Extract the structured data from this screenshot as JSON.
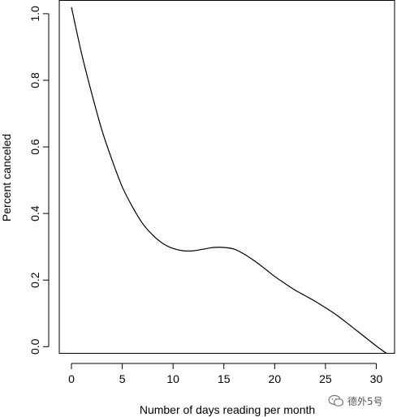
{
  "chart_data": {
    "type": "line",
    "title": "",
    "xlabel": "Number of days reading per month",
    "ylabel": "Percent canceled",
    "xlim": [
      -1.2,
      31.8
    ],
    "ylim": [
      -0.02,
      1.04
    ],
    "x_ticks": [
      0,
      5,
      10,
      15,
      20,
      25,
      30
    ],
    "x_tick_labels": [
      "0",
      "5",
      "10",
      "15",
      "20",
      "25",
      "30"
    ],
    "y_ticks": [
      0.0,
      0.2,
      0.4,
      0.6,
      0.8,
      1.0
    ],
    "y_tick_labels": [
      "0.0",
      "0.2",
      "0.4",
      "0.6",
      "0.8",
      "1.0"
    ],
    "series": [
      {
        "color": "#000000",
        "x": [
          0,
          1,
          2,
          3,
          4,
          5,
          6,
          7,
          8,
          9,
          10,
          11,
          12,
          13,
          14,
          15,
          16,
          17,
          18,
          19,
          20,
          21,
          22,
          23,
          24,
          25,
          26,
          27,
          28,
          29,
          30,
          31
        ],
        "y": [
          1.02,
          0.88,
          0.76,
          0.65,
          0.56,
          0.48,
          0.42,
          0.37,
          0.335,
          0.31,
          0.295,
          0.288,
          0.288,
          0.293,
          0.298,
          0.298,
          0.293,
          0.278,
          0.258,
          0.235,
          0.211,
          0.19,
          0.17,
          0.153,
          0.136,
          0.117,
          0.097,
          0.074,
          0.05,
          0.026,
          0.002,
          -0.02
        ]
      }
    ],
    "grid": false,
    "legend": "none"
  },
  "watermark": {
    "text": "德外5号",
    "icon": "wechat-icon"
  }
}
